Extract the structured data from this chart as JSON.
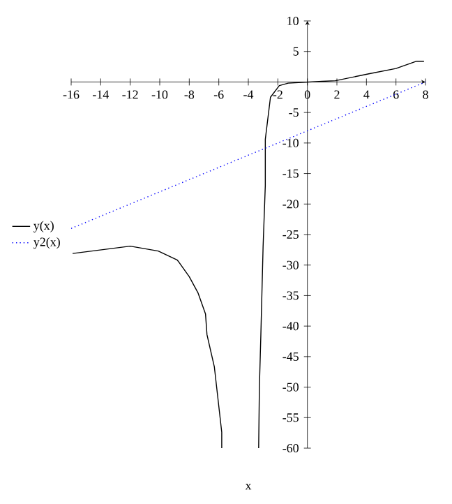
{
  "chart_data": {
    "type": "line",
    "xlabel": "x",
    "xlim": [
      -16,
      8
    ],
    "ylim": [
      -60,
      10
    ],
    "xticks": [
      -16,
      -14,
      -12,
      -10,
      -8,
      -6,
      -4,
      -2,
      0,
      2,
      4,
      6,
      8
    ],
    "yticks": [
      -60,
      -55,
      -50,
      -45,
      -40,
      -35,
      -30,
      -25,
      -20,
      -15,
      -10,
      -5,
      5,
      10
    ],
    "legend": "left",
    "grid": false,
    "marker": "none",
    "series": [
      {
        "name": "y(x)",
        "color": "#000000",
        "line_style": "solid",
        "x": [
          -15.9,
          -12,
          -10.1,
          -8.8,
          -8,
          -7.4,
          -6.9,
          -6.8,
          -6.3,
          -5.8,
          -5.8,
          null,
          -3.3,
          -3.25,
          -3.15,
          -3,
          -2.85,
          -2.85,
          -2.5,
          -1.9,
          -1.3,
          1,
          1.9,
          4.1,
          6,
          7.4,
          7.9
        ],
        "values": [
          -28.1,
          -26.9,
          -27.7,
          -29.2,
          -31.9,
          -34.6,
          -38,
          -41.4,
          -46.7,
          -57.4,
          -60,
          null,
          -60,
          -50,
          -41.4,
          -27,
          -17,
          -9.4,
          -2.5,
          -0.6,
          -0.2,
          0.1,
          0.2,
          1.3,
          2.2,
          3.4,
          3.4
        ]
      },
      {
        "name": "y2(x)",
        "color": "#0000ff",
        "line_style": "dotted",
        "x": [
          -16,
          8
        ],
        "values": [
          -24,
          0
        ]
      }
    ]
  }
}
